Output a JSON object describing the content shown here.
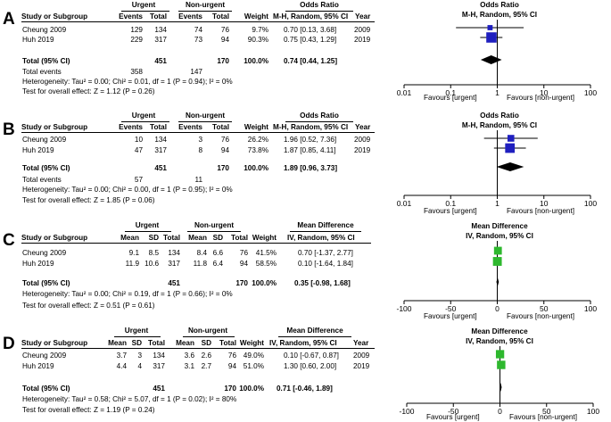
{
  "chart_data": [
    {
      "panel": "A",
      "type": "forest-plot",
      "col": {
        "study": "Study or Subgroup",
        "events": "Events",
        "total": "Total",
        "weight": "Weight",
        "method": "M-H, Random, 95% CI",
        "year": "Year"
      },
      "group1": "Urgent",
      "group2": "Non-urgent",
      "effect_title": "Odds Ratio",
      "plot_title": "Odds Ratio",
      "plot_method": "M-H, Random, 95% CI",
      "studies": [
        {
          "name": "Cheung 2009",
          "c": [
            "129",
            "134",
            "74",
            "76"
          ],
          "weight": "9.7%",
          "ci": "0.70 [0.13, 3.68]",
          "year": "2009",
          "est": 0.7,
          "lo": 0.13,
          "hi": 3.68,
          "w": 9.7
        },
        {
          "name": "Huh 2019",
          "c": [
            "229",
            "317",
            "73",
            "94"
          ],
          "weight": "90.3%",
          "ci": "0.75 [0.43, 1.29]",
          "year": "2019",
          "est": 0.75,
          "lo": 0.43,
          "hi": 1.29,
          "w": 90.3
        }
      ],
      "total": {
        "label": "Total (95% CI)",
        "n1": "451",
        "n2": "170",
        "weight": "100.0%",
        "ci": "0.74 [0.44, 1.25]",
        "est": 0.74,
        "lo": 0.44,
        "hi": 1.25
      },
      "events": {
        "label": "Total events",
        "e1": "358",
        "e2": "147"
      },
      "heterogeneity": "Heterogeneity: Tau² = 0.00; Chi² = 0.01, df = 1 (P = 0.94); I² = 0%",
      "overall": "Test for overall effect: Z = 1.12 (P = 0.26)",
      "axis": {
        "scale": "log",
        "min": 0.01,
        "max": 100,
        "ticks": [
          0.01,
          0.1,
          1,
          10,
          100
        ],
        "tick_labels": [
          "0.01",
          "0.1",
          "1",
          "10",
          "100"
        ]
      },
      "favours_left": "Favours [urgent]",
      "favours_right": "Favours [non-urgent]"
    },
    {
      "panel": "B",
      "type": "forest-plot",
      "col": {
        "study": "Study or Subgroup",
        "events": "Events",
        "total": "Total",
        "weight": "Weight",
        "method": "M-H, Random, 95% CI",
        "year": "Year"
      },
      "group1": "Urgent",
      "group2": "Non-urgent",
      "effect_title": "Odds Ratio",
      "plot_title": "Odds Ratio",
      "plot_method": "M-H, Random, 95% CI",
      "studies": [
        {
          "name": "Cheung 2009",
          "c": [
            "10",
            "134",
            "3",
            "76"
          ],
          "weight": "26.2%",
          "ci": "1.96 [0.52, 7.36]",
          "year": "2009",
          "est": 1.96,
          "lo": 0.52,
          "hi": 7.36,
          "w": 26.2
        },
        {
          "name": "Huh 2019",
          "c": [
            "47",
            "317",
            "8",
            "94"
          ],
          "weight": "73.8%",
          "ci": "1.87 [0.85, 4.11]",
          "year": "2019",
          "est": 1.87,
          "lo": 0.85,
          "hi": 4.11,
          "w": 73.8
        }
      ],
      "total": {
        "label": "Total (95% CI)",
        "n1": "451",
        "n2": "170",
        "weight": "100.0%",
        "ci": "1.89 [0.96, 3.73]",
        "est": 1.89,
        "lo": 0.96,
        "hi": 3.73
      },
      "events": {
        "label": "Total events",
        "e1": "57",
        "e2": "11"
      },
      "heterogeneity": "Heterogeneity: Tau² = 0.00; Chi² = 0.00, df = 1 (P = 0.95); I² = 0%",
      "overall": "Test for overall effect: Z = 1.85 (P = 0.06)",
      "axis": {
        "scale": "log",
        "min": 0.01,
        "max": 100,
        "ticks": [
          0.01,
          0.1,
          1,
          10,
          100
        ],
        "tick_labels": [
          "0.01",
          "0.1",
          "1",
          "10",
          "100"
        ]
      },
      "favours_left": "Favours [urgent]",
      "favours_right": "Favours [non-urgent]"
    },
    {
      "panel": "C",
      "type": "forest-plot",
      "col": {
        "study": "Study or Subgroup",
        "mean": "Mean",
        "sd": "SD",
        "total": "Total",
        "weight": "Weight",
        "method": "IV, Random, 95% CI"
      },
      "group1": "Urgent",
      "group2": "Non-urgent",
      "effect_title": "Mean Difference",
      "plot_title": "Mean Difference",
      "plot_method": "IV, Random, 95% CI",
      "studies": [
        {
          "name": "Cheung 2009",
          "c": [
            "9.1",
            "8.5",
            "134",
            "8.4",
            "6.6",
            "76"
          ],
          "weight": "41.5%",
          "ci": "0.70 [-1.37, 2.77]",
          "est": 0.7,
          "lo": -1.37,
          "hi": 2.77,
          "w": 41.5
        },
        {
          "name": "Huh 2019",
          "c": [
            "11.9",
            "10.6",
            "317",
            "11.8",
            "6.4",
            "94"
          ],
          "weight": "58.5%",
          "ci": "0.10 [-1.64, 1.84]",
          "est": 0.1,
          "lo": -1.64,
          "hi": 1.84,
          "w": 58.5
        }
      ],
      "total": {
        "label": "Total (95% CI)",
        "n1": "451",
        "n2": "170",
        "weight": "100.0%",
        "ci": "0.35 [-0.98, 1.68]",
        "est": 0.35,
        "lo": -0.98,
        "hi": 1.68
      },
      "heterogeneity": "Heterogeneity: Tau² = 0.00; Chi² = 0.19, df = 1 (P = 0.66); I² = 0%",
      "overall": "Test for overall effect: Z = 0.51 (P = 0.61)",
      "axis": {
        "scale": "linear",
        "min": -100,
        "max": 100,
        "ticks": [
          -100,
          -50,
          0,
          50,
          100
        ],
        "tick_labels": [
          "-100",
          "-50",
          "0",
          "50",
          "100"
        ]
      },
      "favours_left": "Favours [urgent]",
      "favours_right": "Favours [non-urgent]"
    },
    {
      "panel": "D",
      "type": "forest-plot",
      "col": {
        "study": "Study or Subgroup",
        "mean": "Mean",
        "sd": "SD",
        "total": "Total",
        "weight": "Weight",
        "method": "IV, Random, 95% CI",
        "year": "Year"
      },
      "group1": "Urgent",
      "group2": "Non-urgent",
      "effect_title": "Mean Difference",
      "plot_title": "Mean Difference",
      "plot_method": "IV, Random, 95% CI",
      "studies": [
        {
          "name": "Cheung 2009",
          "c": [
            "3.7",
            "3",
            "134",
            "3.6",
            "2.6",
            "76"
          ],
          "weight": "49.0%",
          "ci": "0.10 [-0.67, 0.87]",
          "year": "2009",
          "est": 0.1,
          "lo": -0.67,
          "hi": 0.87,
          "w": 49.0
        },
        {
          "name": "Huh 2019",
          "c": [
            "4.4",
            "4",
            "317",
            "3.1",
            "2.7",
            "94"
          ],
          "weight": "51.0%",
          "ci": "1.30 [0.60, 2.00]",
          "year": "2019",
          "est": 1.3,
          "lo": 0.6,
          "hi": 2.0,
          "w": 51.0
        }
      ],
      "total": {
        "label": "Total (95% CI)",
        "n1": "451",
        "n2": "170",
        "weight": "100.0%",
        "ci": "0.71 [-0.46, 1.89]",
        "est": 0.71,
        "lo": -0.46,
        "hi": 1.89
      },
      "heterogeneity": "Heterogeneity: Tau² = 0.58; Chi² = 5.07, df = 1 (P = 0.02); I² = 80%",
      "overall": "Test for overall effect: Z = 1.19 (P = 0.24)",
      "axis": {
        "scale": "linear",
        "min": -100,
        "max": 100,
        "ticks": [
          -100,
          -50,
          0,
          50,
          100
        ],
        "tick_labels": [
          "-100",
          "-50",
          "0",
          "50",
          "100"
        ]
      },
      "favours_left": "Favours [urgent]",
      "favours_right": "Favours [non-urgent]"
    }
  ],
  "colors": {
    "or_marker": "#1f1fbf",
    "md_marker": "#2eb82e",
    "line": "#000000"
  }
}
